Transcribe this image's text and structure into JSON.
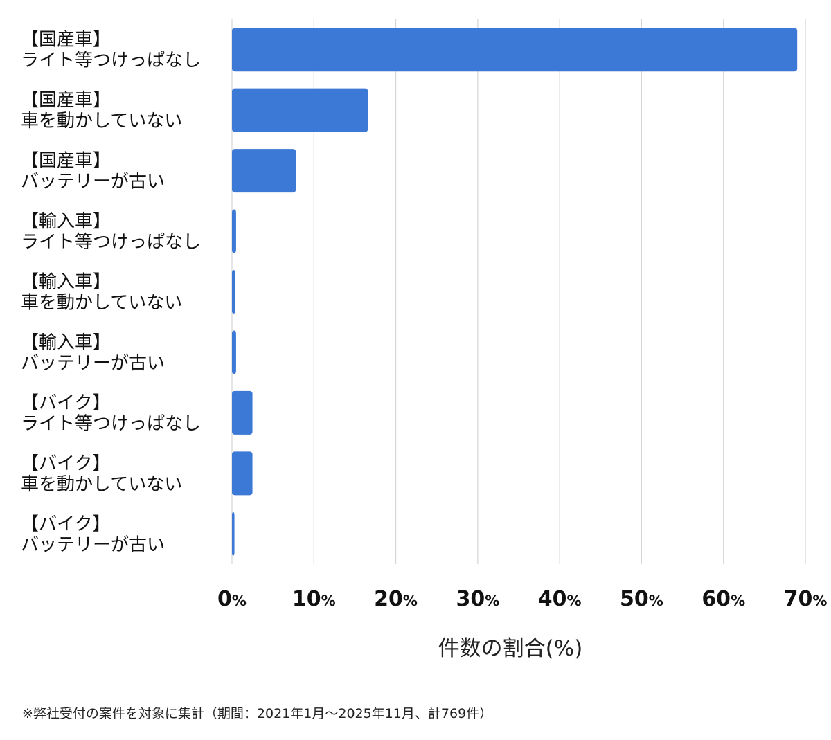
{
  "chart_data": {
    "type": "bar",
    "orientation": "horizontal",
    "categories": [
      [
        "【国産車】",
        "ライト等つけっぱなし"
      ],
      [
        "【国産車】",
        "車を動かしていない"
      ],
      [
        "【国産車】",
        "バッテリーが古い"
      ],
      [
        "【輸入車】",
        "ライト等つけっぱなし"
      ],
      [
        "【輸入車】",
        "車を動かしていない"
      ],
      [
        "【輸入車】",
        "バッテリーが古い"
      ],
      [
        "【バイク】",
        "ライト等つけっぱなし"
      ],
      [
        "【バイク】",
        "車を動かしていない"
      ],
      [
        "【バイク】",
        "バッテリーが古い"
      ]
    ],
    "values": [
      69,
      16.6,
      7.8,
      0.5,
      0.4,
      0.5,
      2.5,
      2.5,
      0.3
    ],
    "xlabel": "件数の割合(%)",
    "xlim": [
      0,
      70
    ],
    "xticks": [
      0,
      10,
      20,
      30,
      40,
      50,
      60,
      70
    ],
    "tick_suffix": "%",
    "grid": true,
    "bar_color": "#3c78d6",
    "grid_color": "#d6d6d6"
  },
  "footnote": "※弊社受付の案件を対象に集計（期間：2021年1月〜2025年11月、計769件）"
}
